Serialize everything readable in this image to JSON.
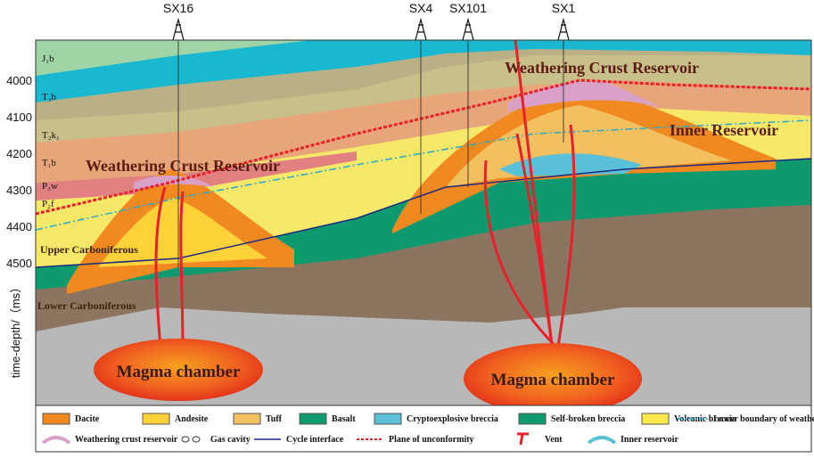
{
  "wells": [
    "SX16",
    "SX4",
    "SX101",
    "SX1"
  ],
  "depth_axis": {
    "label": "time-depth/（ms）",
    "ticks": [
      4000,
      4100,
      4200,
      4300,
      4400,
      4500
    ]
  },
  "strata": [
    "J₁b",
    "T₃b",
    "T₂k₁",
    "T₁b",
    "P₃w",
    "P₂f"
  ],
  "units": [
    "Upper Carboniferous",
    "Lower Carboniferous"
  ],
  "annotations": [
    "Weathering Crust Reservoir",
    "Weathering Crust Reservoir",
    "Inner Reservoir",
    "Magma chamber",
    "Magma chamber"
  ],
  "legend": [
    "Dacite",
    "Andesite",
    "Tuff",
    "Basalt",
    "Cryptoexplosive breccia",
    "Self-broken breccia",
    "Volcanic breccia",
    "Lower boundary of weathering crust",
    "Weathering crust reservoir",
    "Gas cavity",
    "Cycle interface",
    "Plane of unconformity",
    "Vent",
    "Inner reservoir"
  ]
}
